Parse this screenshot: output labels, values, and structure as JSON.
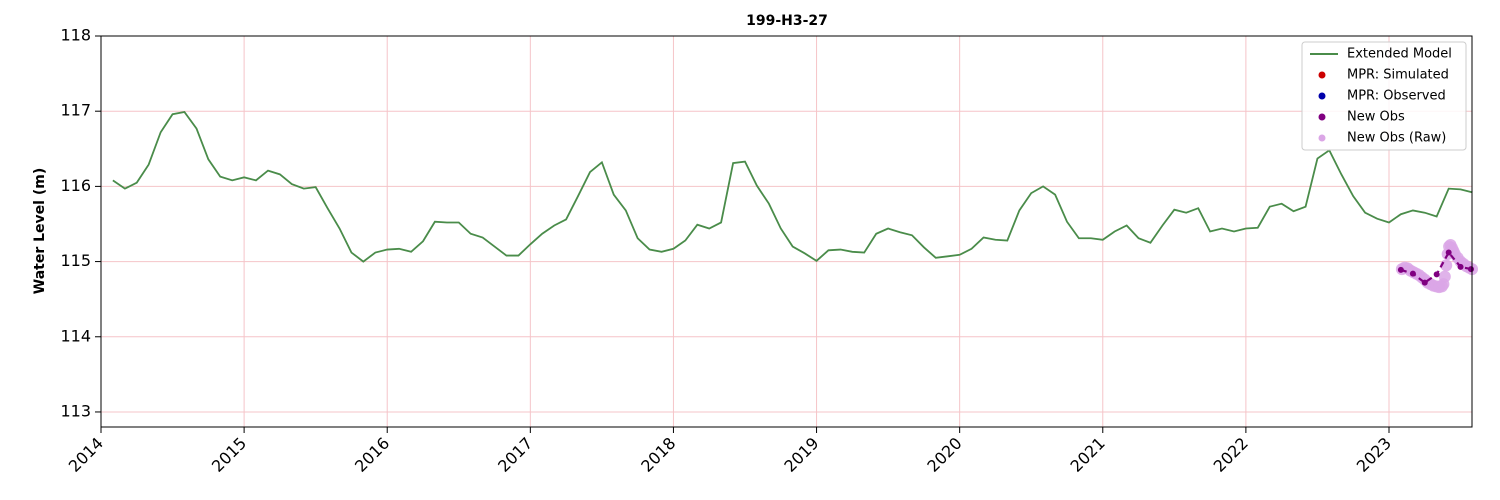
{
  "chart_data": {
    "type": "line",
    "title": "199-H3-27",
    "y_label": "Water Level (m)",
    "xlim": [
      2014,
      2023.58
    ],
    "ylim": [
      112.8,
      118
    ],
    "xticks": [
      2014,
      2015,
      2016,
      2017,
      2018,
      2019,
      2020,
      2021,
      2022,
      2023
    ],
    "yticks": [
      113,
      114,
      115,
      116,
      117,
      118
    ],
    "grid": true,
    "legend": "upper right",
    "series": [
      {
        "name": "Extended Model",
        "color": "#4a8c4a",
        "mode": "line",
        "x": [
          2014.083,
          2014.167,
          2014.25,
          2014.333,
          2014.417,
          2014.5,
          2014.583,
          2014.667,
          2014.75,
          2014.833,
          2014.917,
          2015,
          2015.083,
          2015.167,
          2015.25,
          2015.333,
          2015.417,
          2015.5,
          2015.583,
          2015.667,
          2015.75,
          2015.833,
          2015.917,
          2016,
          2016.083,
          2016.167,
          2016.25,
          2016.333,
          2016.417,
          2016.5,
          2016.583,
          2016.667,
          2016.75,
          2016.833,
          2016.917,
          2017,
          2017.083,
          2017.167,
          2017.25,
          2017.333,
          2017.417,
          2017.5,
          2017.583,
          2017.667,
          2017.75,
          2017.833,
          2017.917,
          2018,
          2018.083,
          2018.167,
          2018.25,
          2018.333,
          2018.417,
          2018.5,
          2018.583,
          2018.667,
          2018.75,
          2018.833,
          2018.917,
          2019,
          2019.083,
          2019.167,
          2019.25,
          2019.333,
          2019.417,
          2019.5,
          2019.583,
          2019.667,
          2019.75,
          2019.833,
          2019.917,
          2020,
          2020.083,
          2020.167,
          2020.25,
          2020.333,
          2020.417,
          2020.5,
          2020.583,
          2020.667,
          2020.75,
          2020.833,
          2020.917,
          2021,
          2021.083,
          2021.167,
          2021.25,
          2021.333,
          2021.417,
          2021.5,
          2021.583,
          2021.667,
          2021.75,
          2021.833,
          2021.917,
          2022,
          2022.083,
          2022.167,
          2022.25,
          2022.333,
          2022.417,
          2022.5,
          2022.583,
          2022.667,
          2022.75,
          2022.833,
          2022.917,
          2023,
          2023.083,
          2023.167,
          2023.25,
          2023.333,
          2023.417,
          2023.5,
          2023.583
        ],
        "values": [
          116.08,
          115.97,
          116.05,
          116.29,
          116.72,
          116.96,
          116.99,
          116.77,
          116.36,
          116.13,
          116.08,
          116.12,
          116.08,
          116.21,
          116.16,
          116.03,
          115.97,
          115.99,
          115.71,
          115.44,
          115.12,
          115.0,
          115.12,
          115.16,
          115.17,
          115.13,
          115.27,
          115.53,
          115.52,
          115.52,
          115.37,
          115.32,
          115.2,
          115.08,
          115.08,
          115.23,
          115.37,
          115.48,
          115.56,
          115.87,
          116.19,
          116.32,
          115.89,
          115.68,
          115.31,
          115.16,
          115.13,
          115.17,
          115.28,
          115.49,
          115.44,
          115.52,
          116.31,
          116.33,
          116.01,
          115.77,
          115.44,
          115.2,
          115.11,
          115.01,
          115.15,
          115.16,
          115.13,
          115.12,
          115.37,
          115.44,
          115.39,
          115.35,
          115.19,
          115.05,
          115.07,
          115.09,
          115.17,
          115.32,
          115.29,
          115.28,
          115.68,
          115.91,
          116.0,
          115.89,
          115.53,
          115.31,
          115.31,
          115.29,
          115.4,
          115.48,
          115.31,
          115.25,
          115.48,
          115.69,
          115.65,
          115.71,
          115.4,
          115.44,
          115.4,
          115.44,
          115.45,
          115.73,
          115.77,
          115.67,
          115.73,
          116.37,
          116.48,
          116.16,
          115.87,
          115.65,
          115.57,
          115.52,
          115.63,
          115.68,
          115.65,
          115.6,
          115.97,
          115.96,
          115.92
        ]
      },
      {
        "name": "MPR: Simulated",
        "color": "#cc0000",
        "mode": "markers",
        "x": [],
        "values": []
      },
      {
        "name": "MPR: Observed",
        "color": "#0000aa",
        "mode": "markers",
        "x": [],
        "values": []
      },
      {
        "name": "New Obs (Raw)",
        "color": "#dba6e6",
        "mode": "markers",
        "x": [
          2023.09,
          2023.11,
          2023.13,
          2023.15,
          2023.17,
          2023.19,
          2023.21,
          2023.23,
          2023.25,
          2023.27,
          2023.29,
          2023.31,
          2023.33,
          2023.35,
          2023.37,
          2023.38,
          2023.39,
          2023.4,
          2023.41,
          2023.42,
          2023.43,
          2023.44,
          2023.45,
          2023.46,
          2023.48,
          2023.5,
          2023.52,
          2023.54,
          2023.56,
          2023.58
        ],
        "values": [
          114.9,
          114.92,
          114.91,
          114.88,
          114.86,
          114.84,
          114.82,
          114.79,
          114.76,
          114.72,
          114.7,
          114.68,
          114.67,
          114.66,
          114.67,
          114.7,
          114.8,
          114.95,
          115.1,
          115.2,
          115.22,
          115.18,
          115.14,
          115.1,
          115.05,
          115.0,
          114.97,
          114.94,
          114.92,
          114.9
        ]
      },
      {
        "name": "New Obs",
        "color": "#800080",
        "mode": "dashed-markers",
        "x": [
          2023.083,
          2023.167,
          2023.25,
          2023.333,
          2023.417,
          2023.5,
          2023.573
        ],
        "values": [
          114.89,
          114.84,
          114.72,
          114.83,
          115.12,
          114.93,
          114.9
        ]
      }
    ]
  }
}
